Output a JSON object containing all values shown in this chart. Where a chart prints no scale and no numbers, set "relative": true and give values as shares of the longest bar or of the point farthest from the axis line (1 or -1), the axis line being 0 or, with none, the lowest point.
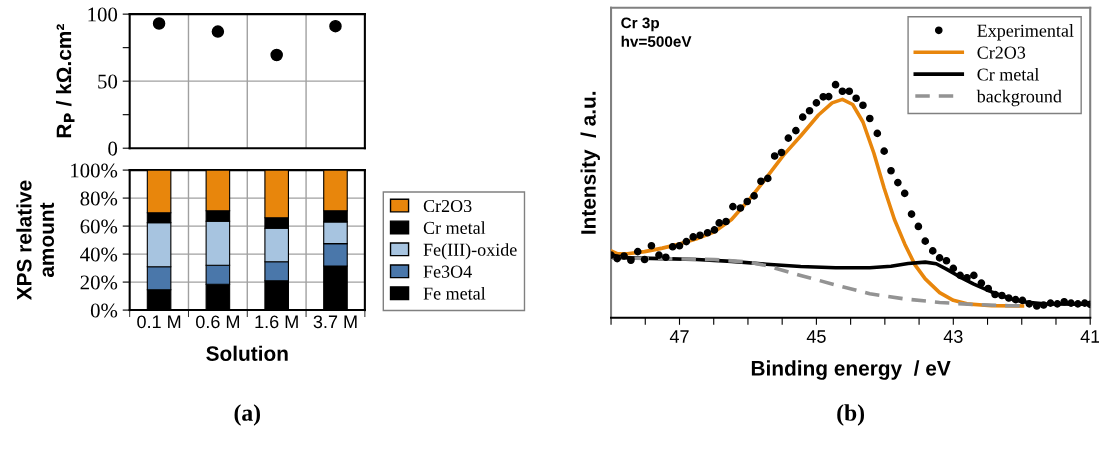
{
  "chart_data": [
    {
      "type": "scatter",
      "ylabel": "R$_{P}$ / kΩ.cm²",
      "categories": [
        null,
        null,
        null,
        null
      ],
      "series": [
        {
          "color": "#000000",
          "values": [
            93,
            87,
            69.5,
            91
          ]
        }
      ],
      "ylim": [
        0,
        100
      ],
      "yticks": [
        0,
        {
          "value": 25,
          "label": null
        },
        50,
        {
          "value": 75,
          "label": null
        },
        100
      ],
      "marker": "circle",
      "grid": true,
      "tick_labels": "y"
    },
    {
      "type": "bar",
      "stacked": true,
      "xlabel": "Solution",
      "ylabel": "XPS relative\namount",
      "categories": [
        "0.1 M",
        "0.6 M",
        "1.6 M",
        "3.7 M"
      ],
      "series": [
        {
          "name": "Fe metal",
          "color": "#000000",
          "values": [
            14.5,
            18.5,
            21,
            31.5
          ]
        },
        {
          "name": "Fe3O4",
          "color": "#4a77aa",
          "values": [
            16.5,
            13.5,
            13.5,
            16
          ]
        },
        {
          "name": "Fe(III)-oxide",
          "color": "#a7c4e0",
          "values": [
            31.5,
            31.5,
            24,
            15.5
          ]
        },
        {
          "name": "Cr metal",
          "color": "#000000",
          "values": [
            7,
            7.5,
            7.5,
            8
          ]
        },
        {
          "name": "Cr2O3",
          "color": "#e8860c",
          "values": [
            30.5,
            29,
            34,
            29
          ]
        }
      ],
      "ylim": [
        0,
        100
      ],
      "yticks": [
        {
          "value": 0,
          "label": "0%"
        },
        {
          "value": 20,
          "label": "20%"
        },
        {
          "value": 40,
          "label": "40%"
        },
        {
          "value": 60,
          "label": "60%"
        },
        {
          "value": 80,
          "label": "80%"
        },
        {
          "value": 100,
          "label": "100%"
        }
      ],
      "grid": true,
      "legend": "right",
      "annotations": [
        "(a)"
      ]
    },
    {
      "type": "line",
      "relative": true,
      "xlabel": "Binding energy  / eV",
      "ylabel": "Intensity  / a.u.",
      "xlim": [
        48,
        41
      ],
      "xticks": [
        {
          "value": 48,
          "label": null
        },
        {
          "value": 47.5,
          "label": null
        },
        47,
        {
          "value": 46.5,
          "label": null
        },
        {
          "value": 46,
          "label": null
        },
        {
          "value": 45.5,
          "label": null
        },
        45,
        {
          "value": 44.5,
          "label": null
        },
        {
          "value": 44,
          "label": null
        },
        {
          "value": 43.5,
          "label": null
        },
        43,
        {
          "value": 42.5,
          "label": null
        },
        {
          "value": 42,
          "label": null
        },
        {
          "value": 41.5,
          "label": null
        },
        41
      ],
      "series": [
        {
          "name": "Experimental",
          "type": "scatter",
          "marker": "circle",
          "color": "#000000",
          "x": [
            48.0,
            47.91,
            47.81,
            47.71,
            47.61,
            47.51,
            47.41,
            47.3,
            47.2,
            47.1,
            47.0,
            46.9,
            46.8,
            46.7,
            46.59,
            46.49,
            46.42,
            46.32,
            46.22,
            46.11,
            46.01,
            45.91,
            45.81,
            45.71,
            45.61,
            45.51,
            45.41,
            45.3,
            45.2,
            45.1,
            45.0,
            44.9,
            44.82,
            44.72,
            44.62,
            44.52,
            44.42,
            44.32,
            44.22,
            44.11,
            44.01,
            43.91,
            43.81,
            43.71,
            43.61,
            43.51,
            43.41,
            43.3,
            43.2,
            43.1,
            43.0,
            42.9,
            42.8,
            42.7,
            42.59,
            42.49,
            42.39,
            42.29,
            42.19,
            42.09,
            41.99,
            41.89,
            41.78,
            41.68,
            41.58,
            41.48,
            41.38,
            41.28,
            41.18,
            41.08,
            41.0
          ],
          "values": [
            0.269,
            0.254,
            0.265,
            0.247,
            0.284,
            0.25,
            0.309,
            0.269,
            0.26,
            0.305,
            0.309,
            0.327,
            0.347,
            0.354,
            0.365,
            0.377,
            0.407,
            0.413,
            0.477,
            0.471,
            0.499,
            0.523,
            0.586,
            0.598,
            0.694,
            0.709,
            0.771,
            0.803,
            0.861,
            0.888,
            0.922,
            0.948,
            0.949,
            1.0,
            0.972,
            0.972,
            0.942,
            0.912,
            0.855,
            0.791,
            0.715,
            0.631,
            0.58,
            0.534,
            0.445,
            0.392,
            0.329,
            0.287,
            0.257,
            0.245,
            0.212,
            0.182,
            0.172,
            0.182,
            0.149,
            0.126,
            0.1,
            0.096,
            0.085,
            0.078,
            0.075,
            0.06,
            0.051,
            0.055,
            0.063,
            0.06,
            0.069,
            0.063,
            0.06,
            0.063,
            0.058
          ]
        },
        {
          "name": "Cr2O3",
          "color": "#e8860c",
          "line_style": "solid",
          "x": [
            48.0,
            47.91,
            47.76,
            47.51,
            47.25,
            47.0,
            46.75,
            46.49,
            46.24,
            45.99,
            45.73,
            45.48,
            45.23,
            44.97,
            44.77,
            44.62,
            44.47,
            44.32,
            44.16,
            44.01,
            43.86,
            43.71,
            43.56,
            43.41,
            43.2,
            43.0,
            42.8,
            42.44,
            41.99
          ],
          "values": [
            0.287,
            0.275,
            0.275,
            0.284,
            0.299,
            0.317,
            0.339,
            0.369,
            0.422,
            0.504,
            0.601,
            0.698,
            0.78,
            0.87,
            0.922,
            0.937,
            0.915,
            0.84,
            0.706,
            0.556,
            0.422,
            0.317,
            0.227,
            0.167,
            0.108,
            0.075,
            0.06,
            0.052,
            0.051
          ]
        },
        {
          "name": "Cr metal",
          "color": "#000000",
          "line_style": "solid",
          "x": [
            48.0,
            47.76,
            47.25,
            46.75,
            46.24,
            45.73,
            45.23,
            44.72,
            44.22,
            43.91,
            43.66,
            43.41,
            43.25,
            43.1,
            42.9,
            42.7,
            42.44,
            42.19,
            41.99,
            41.68,
            41.0
          ],
          "values": [
            0.269,
            0.257,
            0.254,
            0.25,
            0.242,
            0.23,
            0.22,
            0.215,
            0.215,
            0.221,
            0.233,
            0.239,
            0.232,
            0.209,
            0.175,
            0.145,
            0.111,
            0.084,
            0.069,
            0.06,
            0.058
          ]
        },
        {
          "name": "background",
          "color": "#939393",
          "line_style": "dashed",
          "x": [
            48.0,
            47.25,
            46.49,
            45.99,
            45.73,
            45.23,
            44.72,
            44.22,
            43.71,
            43.2,
            42.7,
            42.19,
            41.99
          ],
          "values": [
            0.257,
            0.254,
            0.25,
            0.239,
            0.224,
            0.182,
            0.141,
            0.103,
            0.081,
            0.066,
            0.057,
            0.052,
            0.052
          ]
        }
      ],
      "legend": "top right",
      "tick_labels": "x",
      "annotations": [
        "Cr 3p\nhv=500eV",
        "(b)"
      ]
    }
  ]
}
